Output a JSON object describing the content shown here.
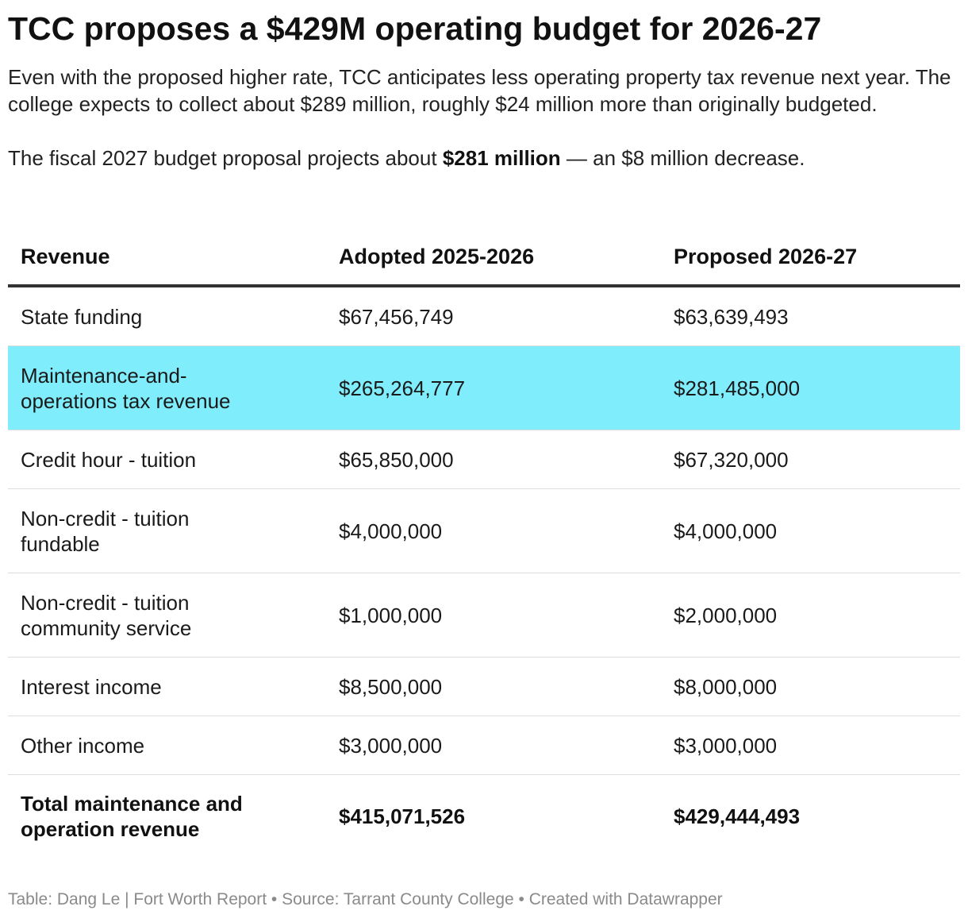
{
  "title": "TCC proposes a $429M operating budget for 2026-27",
  "intro": {
    "paragraph1": "Even with the proposed higher rate, TCC anticipates less operating property tax revenue next year. The college expects to collect about $289 million, roughly $24 million more than originally budgeted.",
    "paragraph2_before": "The fiscal 2027 budget proposal projects about ",
    "paragraph2_bold": "$281 million",
    "paragraph2_after": " — an $8 million decrease."
  },
  "colors": {
    "highlight_row": "#7fedfc",
    "header_rule": "#333333",
    "row_divider": "#dddddd",
    "footer_text": "#8a8a8a"
  },
  "chart_data": {
    "type": "table",
    "columns": [
      "Revenue",
      "Adopted 2025-2026",
      "Proposed 2026-27"
    ],
    "rows": [
      {
        "label": "State funding",
        "adopted": "$67,456,749",
        "proposed": "$63,639,493"
      },
      {
        "label": "Maintenance-and-operations tax revenue",
        "adopted": "$265,264,777",
        "proposed": "$281,485,000",
        "highlighted": true
      },
      {
        "label": "Credit hour - tuition",
        "adopted": "$65,850,000",
        "proposed": "$67,320,000"
      },
      {
        "label": "Non-credit - tuition fundable",
        "adopted": "$4,000,000",
        "proposed": "$4,000,000"
      },
      {
        "label": "Non-credit - tuition community service",
        "adopted": "$1,000,000",
        "proposed": "$2,000,000"
      },
      {
        "label": "Interest income",
        "adopted": "$8,500,000",
        "proposed": "$8,000,000"
      },
      {
        "label": "Other income",
        "adopted": "$3,000,000",
        "proposed": "$3,000,000"
      }
    ],
    "total": {
      "label": "Total maintenance and operation revenue",
      "adopted": "$415,071,526",
      "proposed": "$429,444,493"
    }
  },
  "footer": "Table: Dang Le | Fort Worth Report • Source: Tarrant County College • Created with Datawrapper"
}
